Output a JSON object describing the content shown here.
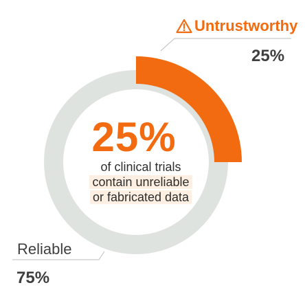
{
  "chart_data": {
    "type": "donut",
    "series": [
      {
        "category": "Untrustworthy",
        "value": 25,
        "label": "25%",
        "color": "#f26b10"
      },
      {
        "category": "Reliable",
        "value": 75,
        "label": "75%",
        "color": "#dfe3e0"
      }
    ],
    "center_value": "25%",
    "center_text": [
      "of clinical trials",
      "contain unreliable",
      "or fabricated data"
    ]
  },
  "colors": {
    "accent": "#f26b10",
    "track": "#dfe3e0",
    "text": "#3f3f3f",
    "highlight": "#fdf0e2"
  },
  "icons": {
    "warning": "warning-triangle-icon"
  }
}
